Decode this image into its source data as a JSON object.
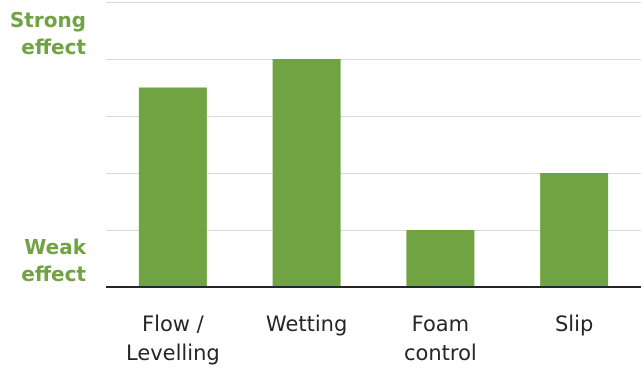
{
  "chart_data": {
    "type": "bar",
    "title": "",
    "categories": [
      "Flow /\nLevelling",
      "Wetting",
      "Foam\ncontrol",
      "Slip"
    ],
    "values": [
      3.5,
      4,
      1,
      2
    ],
    "ylim": [
      0,
      5
    ],
    "grid": true,
    "y_labels": {
      "top": "Strong\neffect",
      "bottom": "Weak\neffect"
    },
    "colors": {
      "bar": "#70a443",
      "label": "#71a244",
      "grid": "#d9d9d9",
      "axis": "#262626",
      "text": "#262626"
    }
  }
}
